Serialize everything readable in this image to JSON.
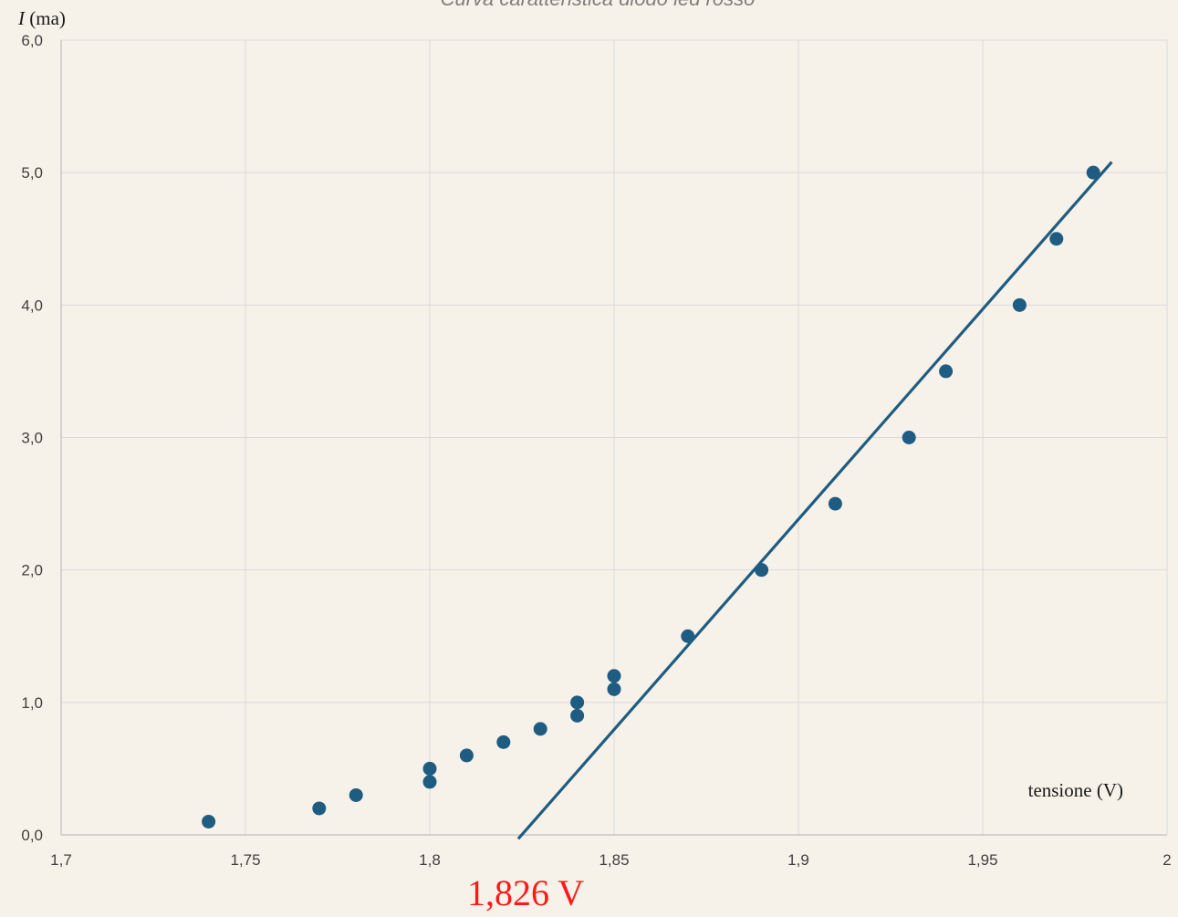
{
  "chart_data": {
    "type": "scatter",
    "title": "Curva caratteristica diodo led rosso",
    "xlabel": "tensione (V)",
    "ylabel_italic": "I",
    "ylabel_unit": " (ma)",
    "xlim": [
      1.7,
      2.0
    ],
    "ylim": [
      0,
      6
    ],
    "x_ticks": [
      {
        "value": 1.7,
        "label": "1,7"
      },
      {
        "value": 1.75,
        "label": "1,75"
      },
      {
        "value": 1.8,
        "label": "1,8"
      },
      {
        "value": 1.85,
        "label": "1,85"
      },
      {
        "value": 1.9,
        "label": "1,9"
      },
      {
        "value": 1.95,
        "label": "1,95"
      },
      {
        "value": 2.0,
        "label": "2"
      }
    ],
    "y_ticks": [
      {
        "value": 0,
        "label": "0,0"
      },
      {
        "value": 1,
        "label": "1,0"
      },
      {
        "value": 2,
        "label": "2,0"
      },
      {
        "value": 3,
        "label": "3,0"
      },
      {
        "value": 4,
        "label": "4,0"
      },
      {
        "value": 5,
        "label": "5,0"
      },
      {
        "value": 6,
        "label": "6,0"
      }
    ],
    "grid": true,
    "marker_color": "#1f5c82",
    "line_color": "#1f5c82",
    "points": [
      {
        "x": 1.74,
        "y": 0.1
      },
      {
        "x": 1.77,
        "y": 0.2
      },
      {
        "x": 1.78,
        "y": 0.3
      },
      {
        "x": 1.8,
        "y": 0.4
      },
      {
        "x": 1.8,
        "y": 0.5
      },
      {
        "x": 1.81,
        "y": 0.6
      },
      {
        "x": 1.82,
        "y": 0.7
      },
      {
        "x": 1.83,
        "y": 0.8
      },
      {
        "x": 1.84,
        "y": 0.9
      },
      {
        "x": 1.84,
        "y": 1.0
      },
      {
        "x": 1.85,
        "y": 1.1
      },
      {
        "x": 1.85,
        "y": 1.2
      },
      {
        "x": 1.87,
        "y": 1.5
      },
      {
        "x": 1.89,
        "y": 2.0
      },
      {
        "x": 1.91,
        "y": 2.5
      },
      {
        "x": 1.93,
        "y": 3.0
      },
      {
        "x": 1.94,
        "y": 3.5
      },
      {
        "x": 1.96,
        "y": 4.0
      },
      {
        "x": 1.97,
        "y": 4.5
      },
      {
        "x": 1.98,
        "y": 5.0
      }
    ],
    "fit_line": {
      "x1": 1.824,
      "y1": -0.03,
      "x2": 1.985,
      "y2": 5.08
    },
    "annotation": {
      "text": "1,826 V",
      "x": 1.826,
      "color": "#ff1a1a"
    }
  }
}
